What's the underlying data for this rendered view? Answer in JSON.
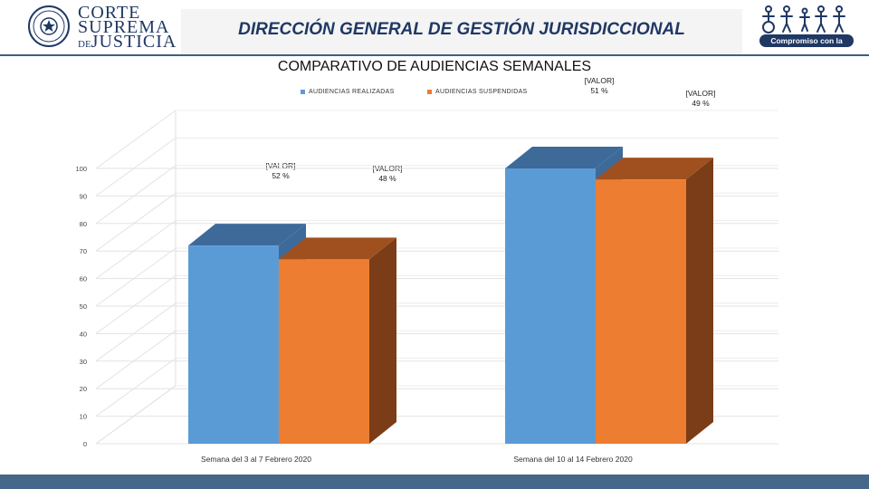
{
  "header": {
    "brand_line1": "CORTE",
    "brand_line2": "SUPREMA",
    "brand_line3_prefix": "DE",
    "brand_line3": "JUSTICIA",
    "title": "DIRECCIÓN GENERAL DE GESTIÓN JURISDICCIONAL",
    "slogan": "Compromiso con la gente"
  },
  "colors": {
    "realizadas_front": "#5b9bd5",
    "realizadas_top": "#3e6a99",
    "suspendidas_front": "#ed7d31",
    "suspendidas_top": "#a0501f",
    "suspendidas_side": "#7a3d17",
    "header_text": "#1f3864",
    "footer": "#456789"
  },
  "chart_data": {
    "type": "bar",
    "title": "COMPARATIVO DE AUDIENCIAS SEMANALES",
    "categories": [
      "Semana del 3 al 7 Febrero 2020",
      "Semana del 10 al 14 Febrero 2020"
    ],
    "series": [
      {
        "name": "AUDIENCIAS REALIZADAS",
        "values": [
          72,
          100
        ]
      },
      {
        "name": "AUDIENCIAS SUSPENDIDAS",
        "values": [
          67,
          96
        ]
      }
    ],
    "ylim": [
      0,
      100
    ],
    "yticks": [
      0,
      10,
      20,
      30,
      40,
      50,
      60,
      70,
      80,
      90,
      100
    ],
    "legend_position": "top",
    "data_labels": [
      {
        "series": "AUDIENCIAS REALIZADAS",
        "category": 0,
        "line1": "[VALOR]",
        "line2": "52 %"
      },
      {
        "series": "AUDIENCIAS SUSPENDIDAS",
        "category": 0,
        "line1": "[VALOR]",
        "line2": "48 %"
      },
      {
        "series": "AUDIENCIAS REALIZADAS",
        "category": 1,
        "line1": "[VALOR]",
        "line2": "51 %"
      },
      {
        "series": "AUDIENCIAS SUSPENDIDAS",
        "category": 1,
        "line1": "[VALOR]",
        "line2": "49 %"
      }
    ]
  }
}
